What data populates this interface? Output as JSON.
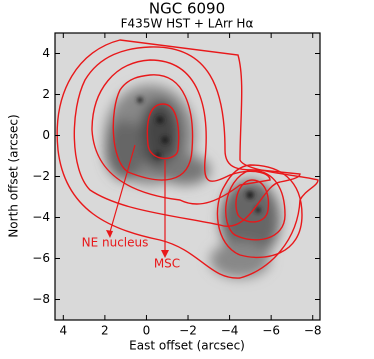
{
  "chart_data": {
    "type": "contour",
    "title": "NGC 6090",
    "subtitle": "F435W HST + LArr Hα",
    "x_label": "East offset (arcsec)",
    "y_label": "North offset (arcsec)",
    "xlim": [
      4.4,
      -8.35
    ],
    "ylim": [
      -9,
      5
    ],
    "xticks": [
      4,
      2,
      0,
      {
        "value": -2,
        "label": "−2"
      },
      {
        "value": -4,
        "label": "−4"
      },
      {
        "value": -6,
        "label": "−6"
      },
      {
        "value": -8,
        "label": "−8"
      }
    ],
    "yticks": [
      4,
      2,
      0,
      {
        "value": -2,
        "label": "−2"
      },
      {
        "value": -4,
        "label": "−4"
      },
      {
        "value": -6,
        "label": "−6"
      },
      {
        "value": -8,
        "label": "−8"
      }
    ],
    "annotations": [
      "NE nucleus",
      "MSC"
    ]
  }
}
